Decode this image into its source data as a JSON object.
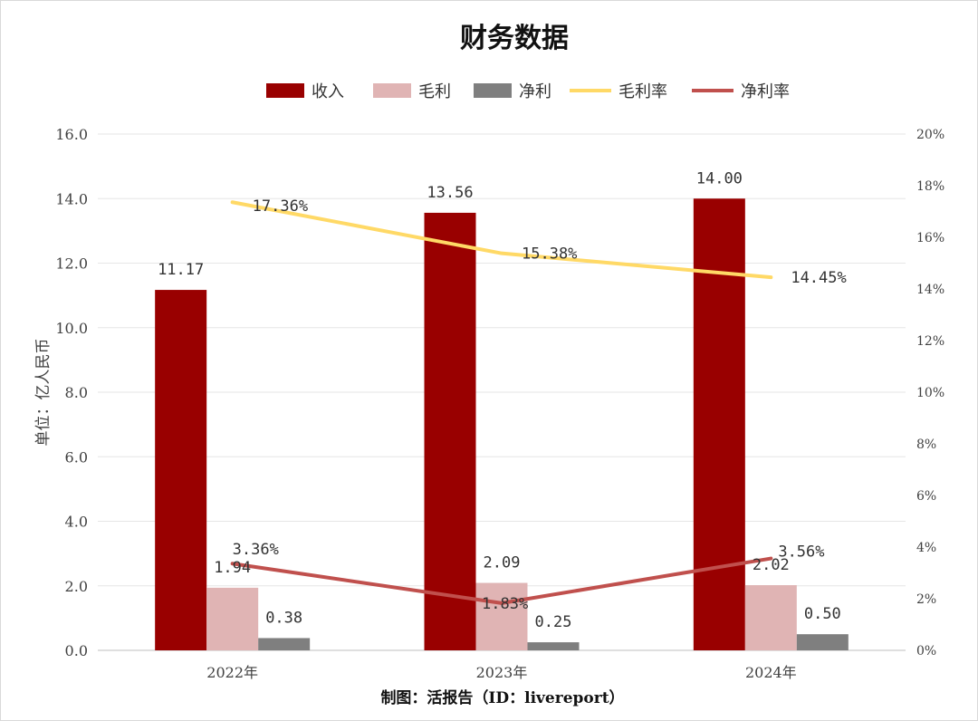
{
  "chart_data": {
    "type": "bar",
    "title": "财务数据",
    "ylabel": "单位：亿人民币",
    "categories": [
      "2022年",
      "2023年",
      "2024年"
    ],
    "ylim": [
      0,
      16
    ],
    "y_ticks": [
      "0.0",
      "2.0",
      "4.0",
      "6.0",
      "8.0",
      "10.0",
      "12.0",
      "14.0",
      "16.0"
    ],
    "y2lim": [
      0,
      20
    ],
    "y2_ticks": [
      "0%",
      "2%",
      "4%",
      "6%",
      "8%",
      "10%",
      "12%",
      "14%",
      "16%",
      "18%",
      "20%"
    ],
    "grid": true,
    "legend_position": "top",
    "series": [
      {
        "name": "收入",
        "kind": "bar",
        "axis": "left",
        "color": "#990000",
        "values": [
          11.17,
          13.56,
          14.0
        ],
        "labels": [
          "11.17",
          "13.56",
          "14.00"
        ]
      },
      {
        "name": "毛利",
        "kind": "bar",
        "axis": "left",
        "color": "#e0b4b4",
        "values": [
          1.94,
          2.09,
          2.02
        ],
        "labels": [
          "1.94",
          "2.09",
          "2.02"
        ]
      },
      {
        "name": "净利",
        "kind": "bar",
        "axis": "left",
        "color": "#7f7f7f",
        "values": [
          0.38,
          0.25,
          0.5
        ],
        "labels": [
          "0.38",
          "0.25",
          "0.50"
        ]
      },
      {
        "name": "毛利率",
        "kind": "line",
        "axis": "right",
        "color": "#ffd966",
        "values": [
          17.36,
          15.38,
          14.45
        ],
        "labels": [
          "17.36%",
          "15.38%",
          "14.45%"
        ]
      },
      {
        "name": "净利率",
        "kind": "line",
        "axis": "right",
        "color": "#c0504d",
        "values": [
          3.36,
          1.83,
          3.56
        ],
        "labels": [
          "3.36%",
          "1.83%",
          "3.56%"
        ]
      }
    ],
    "footer": "制图：活报告（ID：livereport）"
  }
}
